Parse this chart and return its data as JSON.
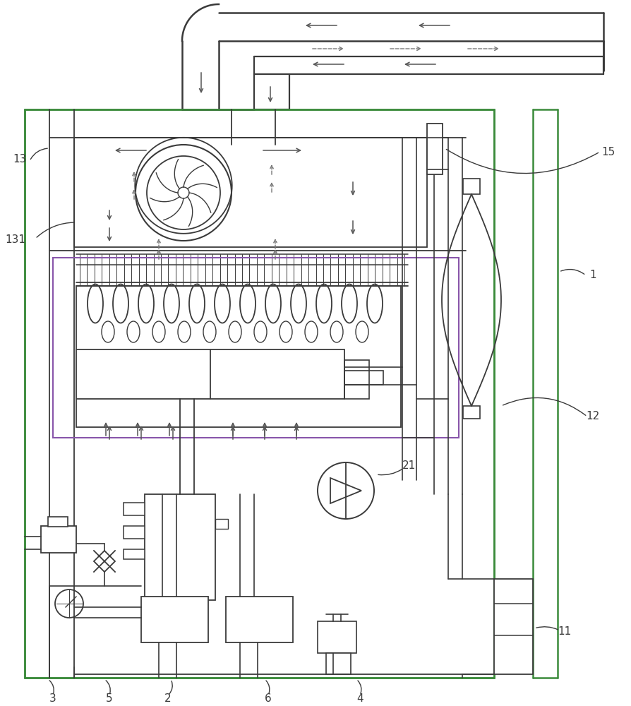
{
  "bg_color": "#ffffff",
  "line_color": "#3a3a3a",
  "green_color": "#3a8a3a",
  "purple_color": "#8855aa",
  "arrow_color": "#555555",
  "label_color": "#222222",
  "figsize": [
    8.95,
    10.0
  ],
  "dpi": 100
}
